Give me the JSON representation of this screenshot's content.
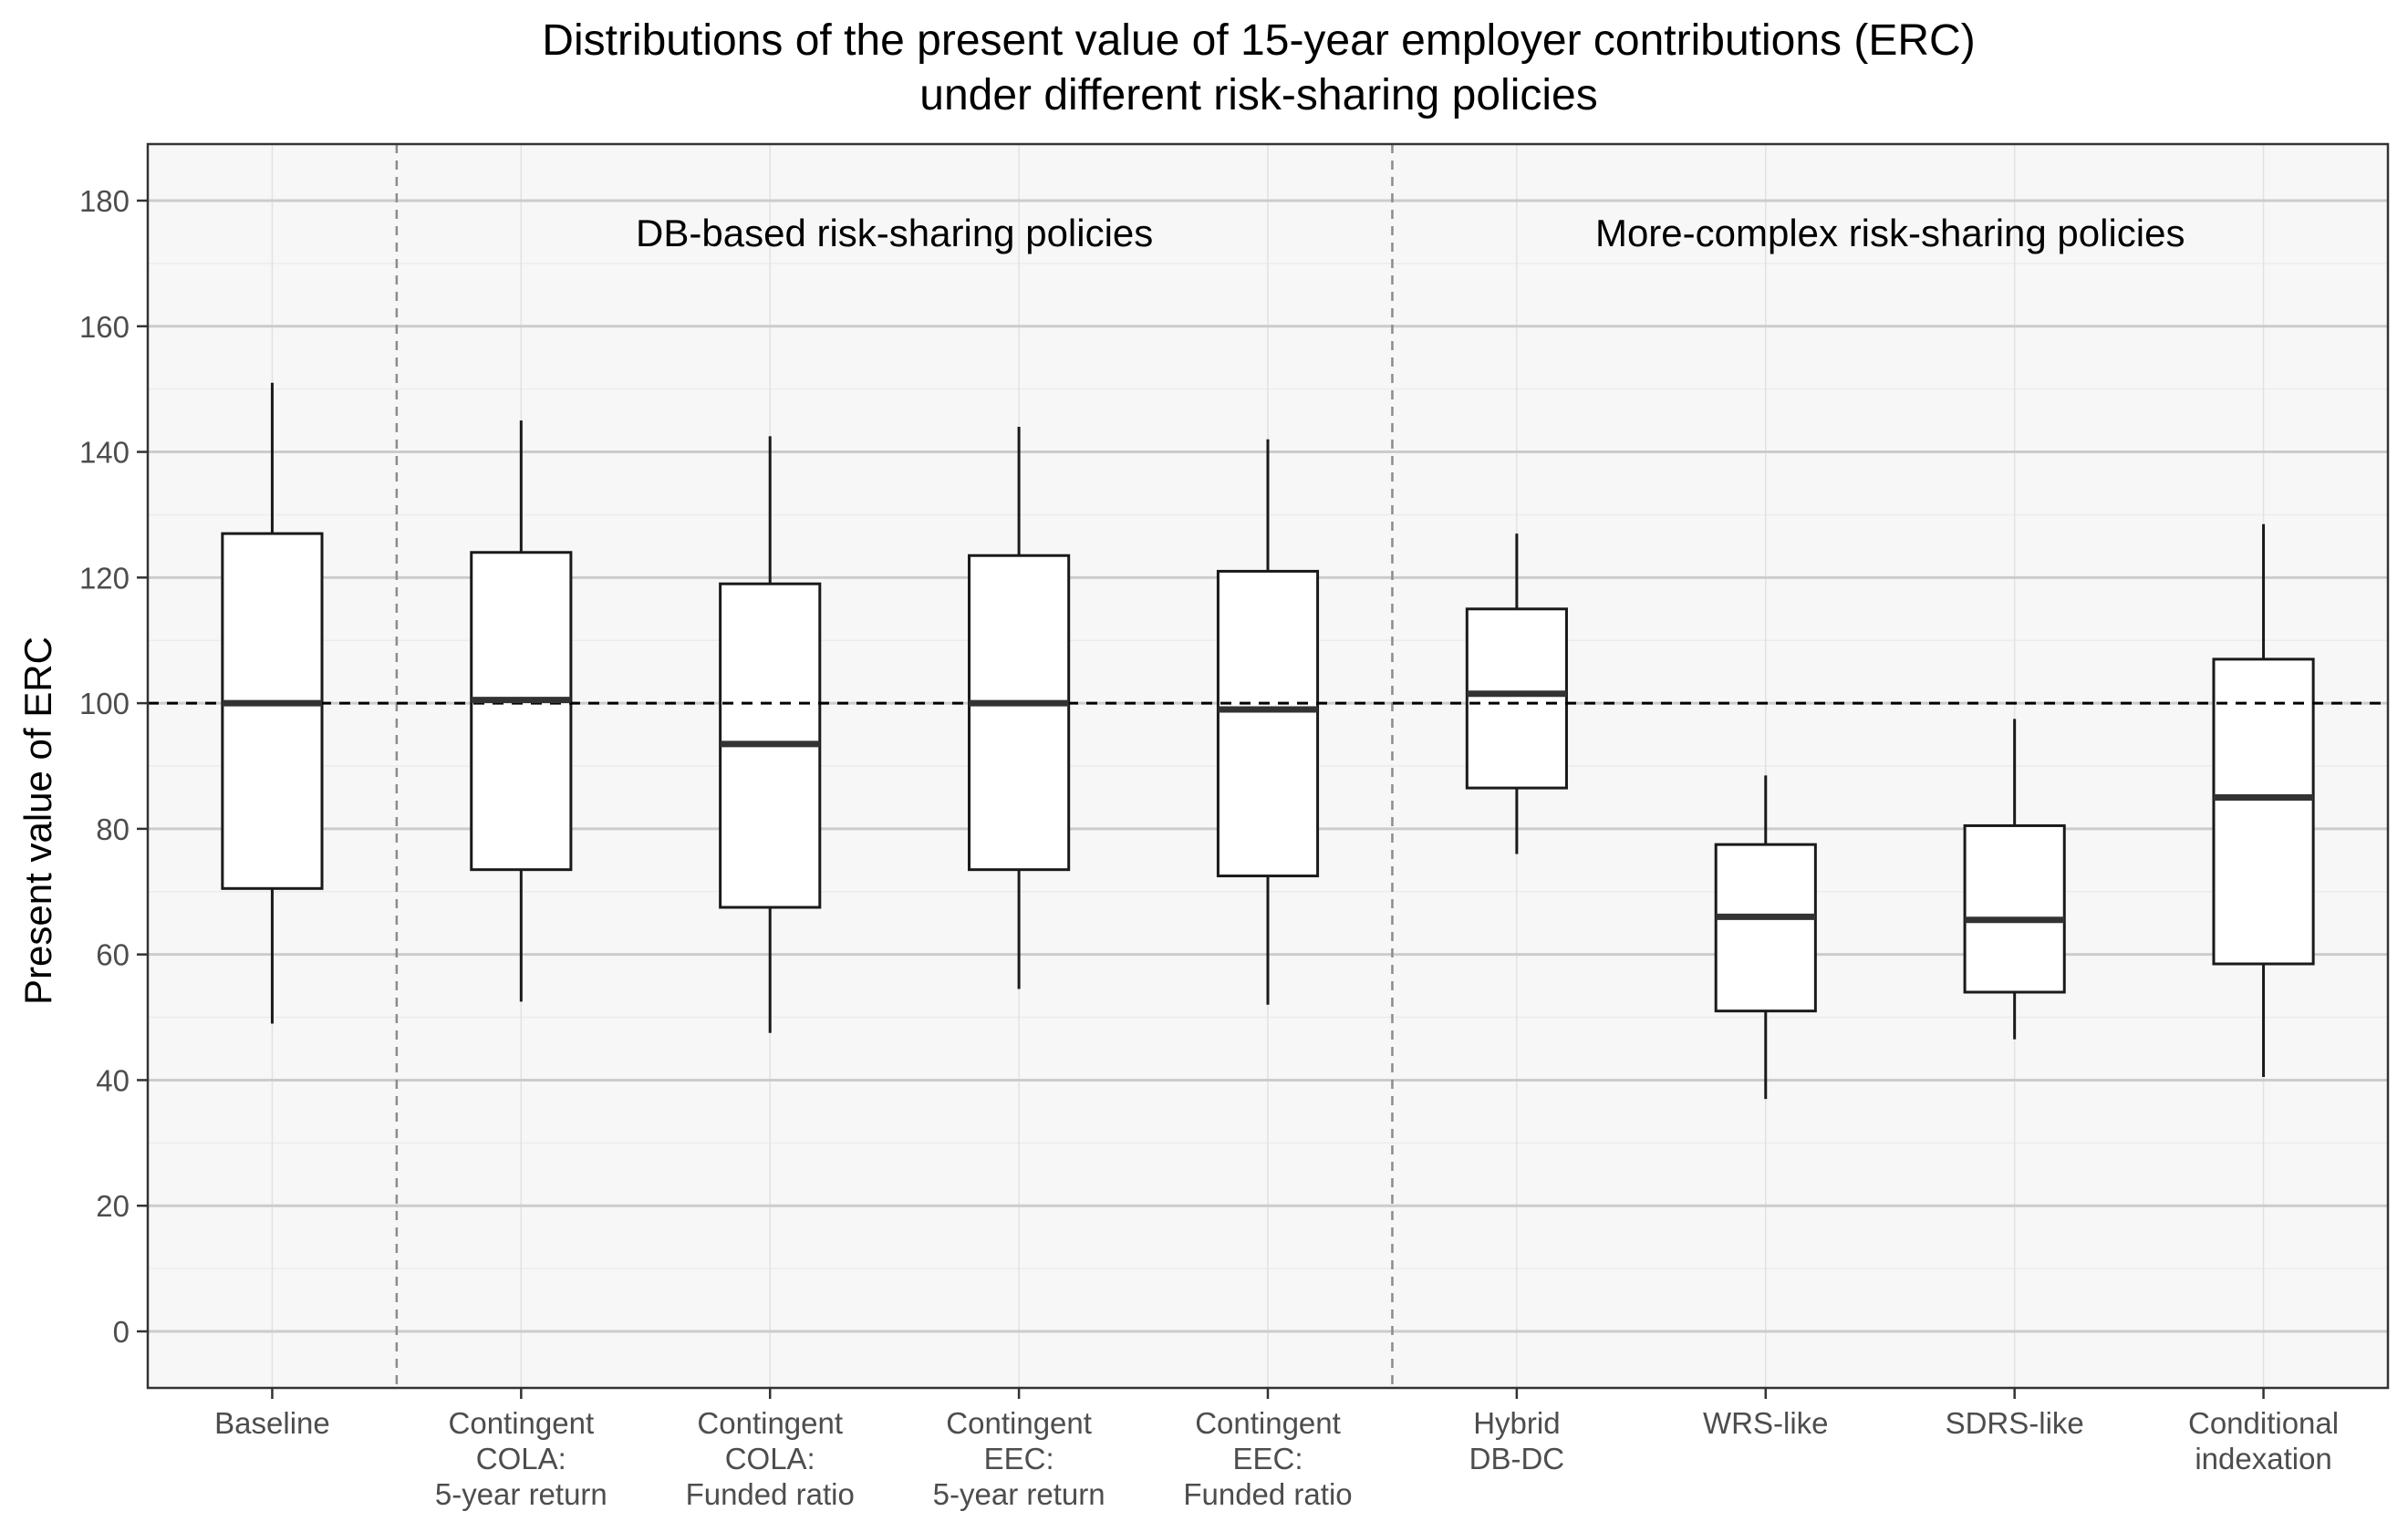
{
  "chart_data": {
    "type": "boxplot",
    "title": "Distributions of the present value of 15-year employer contributions (ERC)",
    "subtitle": "under different risk-sharing policies",
    "xlabel": "",
    "ylabel": "Present value of ERC",
    "ylim": [
      -9,
      189
    ],
    "yticks": [
      0,
      20,
      40,
      60,
      80,
      100,
      120,
      140,
      160,
      180
    ],
    "grid": true,
    "reference_line": 100,
    "categories": [
      [
        "Baseline"
      ],
      [
        "Contingent",
        "COLA:",
        "5-year return"
      ],
      [
        "Contingent",
        "COLA:",
        "Funded ratio"
      ],
      [
        "Contingent",
        "EEC:",
        "5-year return"
      ],
      [
        "Contingent",
        "EEC:",
        "Funded ratio"
      ],
      [
        "Hybrid",
        "DB-DC"
      ],
      [
        "WRS-like"
      ],
      [
        "SDRS-like"
      ],
      [
        "Conditional",
        "indexation"
      ]
    ],
    "boxes": [
      {
        "whisker_low": 49,
        "q1": 70.5,
        "median": 100,
        "q3": 127,
        "whisker_high": 151
      },
      {
        "whisker_low": 52.5,
        "q1": 73.5,
        "median": 100.5,
        "q3": 124,
        "whisker_high": 145
      },
      {
        "whisker_low": 47.5,
        "q1": 67.5,
        "median": 93.5,
        "q3": 119,
        "whisker_high": 142.5
      },
      {
        "whisker_low": 54.5,
        "q1": 73.5,
        "median": 100,
        "q3": 123.5,
        "whisker_high": 144
      },
      {
        "whisker_low": 52,
        "q1": 72.5,
        "median": 99,
        "q3": 121,
        "whisker_high": 142
      },
      {
        "whisker_low": 76,
        "q1": 86.5,
        "median": 101.5,
        "q3": 115,
        "whisker_high": 127
      },
      {
        "whisker_low": 37,
        "q1": 51,
        "median": 66,
        "q3": 77.5,
        "whisker_high": 88.5
      },
      {
        "whisker_low": 46.5,
        "q1": 54,
        "median": 65.5,
        "q3": 80.5,
        "whisker_high": 97.5
      },
      {
        "whisker_low": 40.5,
        "q1": 58.5,
        "median": 85,
        "q3": 107,
        "whisker_high": 128.5
      }
    ],
    "group_separators_after_index": [
      0,
      4
    ],
    "group_labels": [
      {
        "text": "DB-based risk-sharing policies",
        "span": [
          1,
          4
        ]
      },
      {
        "text": "More-complex risk-sharing policies",
        "span": [
          5,
          8
        ]
      }
    ]
  }
}
